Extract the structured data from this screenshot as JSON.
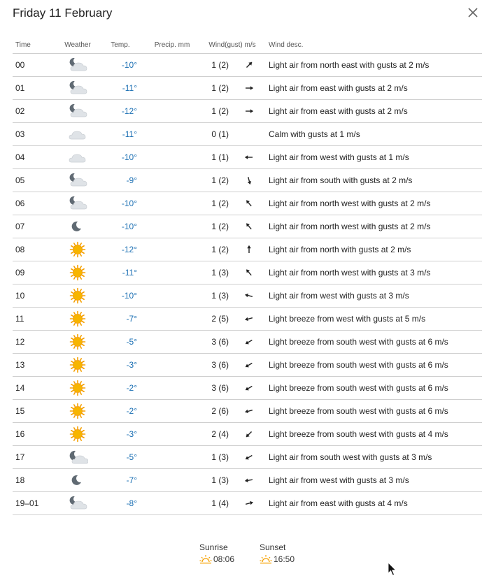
{
  "dialog": {
    "title": "Friday 11 February",
    "close_icon": "close-icon"
  },
  "table": {
    "headers": {
      "time": "Time",
      "weather": "Weather",
      "temp": "Temp.",
      "precip": "Precip. mm",
      "wind": "Wind(gust) m/s",
      "desc": "Wind desc."
    },
    "rows": [
      {
        "time": "00",
        "icon": "moon-cloud",
        "temp": "-10°",
        "precip": "",
        "wind": "1 (2)",
        "arrow_deg": 225,
        "desc": "Light air from north east with gusts at 2 m/s"
      },
      {
        "time": "01",
        "icon": "moon-cloud",
        "temp": "-11°",
        "precip": "",
        "wind": "1 (2)",
        "arrow_deg": 270,
        "desc": "Light air from east with gusts at 2 m/s"
      },
      {
        "time": "02",
        "icon": "moon-cloud",
        "temp": "-12°",
        "precip": "",
        "wind": "1 (2)",
        "arrow_deg": 270,
        "desc": "Light air from east with gusts at 2 m/s"
      },
      {
        "time": "03",
        "icon": "cloud",
        "temp": "-11°",
        "precip": "",
        "wind": "0 (1)",
        "arrow_deg": null,
        "desc": "Calm with gusts at 1 m/s"
      },
      {
        "time": "04",
        "icon": "cloud",
        "temp": "-10°",
        "precip": "",
        "wind": "1 (1)",
        "arrow_deg": 90,
        "desc": "Light air from west with gusts at 1 m/s"
      },
      {
        "time": "05",
        "icon": "moon-cloud",
        "temp": "-9°",
        "precip": "",
        "wind": "1 (2)",
        "arrow_deg": 345,
        "desc": "Light air from south with gusts at 2 m/s"
      },
      {
        "time": "06",
        "icon": "moon-cloud",
        "temp": "-10°",
        "precip": "",
        "wind": "1 (2)",
        "arrow_deg": 140,
        "desc": "Light air from north west with gusts at 2 m/s"
      },
      {
        "time": "07",
        "icon": "moon",
        "temp": "-10°",
        "precip": "",
        "wind": "1 (2)",
        "arrow_deg": 140,
        "desc": "Light air from north west with gusts at 2 m/s"
      },
      {
        "time": "08",
        "icon": "sun",
        "temp": "-12°",
        "precip": "",
        "wind": "1 (2)",
        "arrow_deg": 180,
        "desc": "Light air from north with gusts at 2 m/s"
      },
      {
        "time": "09",
        "icon": "sun",
        "temp": "-11°",
        "precip": "",
        "wind": "1 (3)",
        "arrow_deg": 140,
        "desc": "Light air from north west with gusts at 3 m/s"
      },
      {
        "time": "10",
        "icon": "sun",
        "temp": "-10°",
        "precip": "",
        "wind": "1 (3)",
        "arrow_deg": 105,
        "desc": "Light air from west with gusts at 3 m/s"
      },
      {
        "time": "11",
        "icon": "sun",
        "temp": "-7°",
        "precip": "",
        "wind": "2 (5)",
        "arrow_deg": 75,
        "desc": "Light breeze from west with gusts at 5 m/s"
      },
      {
        "time": "12",
        "icon": "sun",
        "temp": "-5°",
        "precip": "",
        "wind": "3 (6)",
        "arrow_deg": 60,
        "desc": "Light breeze from south west with gusts at 6 m/s"
      },
      {
        "time": "13",
        "icon": "sun",
        "temp": "-3°",
        "precip": "",
        "wind": "3 (6)",
        "arrow_deg": 60,
        "desc": "Light breeze from south west with gusts at 6 m/s"
      },
      {
        "time": "14",
        "icon": "sun",
        "temp": "-2°",
        "precip": "",
        "wind": "3 (6)",
        "arrow_deg": 60,
        "desc": "Light breeze from south west with gusts at 6 m/s"
      },
      {
        "time": "15",
        "icon": "sun",
        "temp": "-2°",
        "precip": "",
        "wind": "2 (6)",
        "arrow_deg": 75,
        "desc": "Light breeze from south west with gusts at 6 m/s"
      },
      {
        "time": "16",
        "icon": "sun",
        "temp": "-3°",
        "precip": "",
        "wind": "2 (4)",
        "arrow_deg": 45,
        "desc": "Light breeze from south west with gusts at 4 m/s"
      },
      {
        "time": "17",
        "icon": "moon-cloud-low",
        "temp": "-5°",
        "precip": "",
        "wind": "1 (3)",
        "arrow_deg": 60,
        "desc": "Light air from south west with gusts at 3 m/s"
      },
      {
        "time": "18",
        "icon": "moon",
        "temp": "-7°",
        "precip": "",
        "wind": "1 (3)",
        "arrow_deg": 80,
        "desc": "Light air from west with gusts at 3 m/s"
      },
      {
        "time": "19–01",
        "icon": "moon-cloud",
        "temp": "-8°",
        "precip": "",
        "wind": "1 (4)",
        "arrow_deg": 255,
        "desc": "Light air from east with gusts at 4 m/s"
      }
    ]
  },
  "sun_times": {
    "sunrise_label": "Sunrise",
    "sunrise_time": "08:06",
    "sunset_label": "Sunset",
    "sunset_time": "16:50"
  },
  "colors": {
    "temp": "#1a6fb3",
    "sun": "#f5a000",
    "cloud": "#d9dde2",
    "moon": "#5e6770"
  }
}
